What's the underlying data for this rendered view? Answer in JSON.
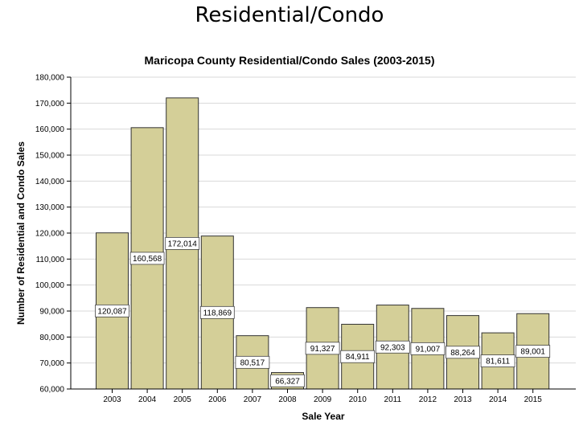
{
  "slide": {
    "title": "Residential/Condo"
  },
  "chart_data": {
    "type": "bar",
    "title": "Maricopa County Residential/Condo Sales (2003-2015)",
    "xlabel": "Sale Year",
    "ylabel": "Number of Residential and Condo Sales",
    "categories": [
      "2003",
      "2004",
      "2005",
      "2006",
      "2007",
      "2008",
      "2009",
      "2010",
      "2011",
      "2012",
      "2013",
      "2014",
      "2015"
    ],
    "values": [
      120087,
      160568,
      172014,
      118869,
      80517,
      66327,
      91327,
      84911,
      92303,
      91007,
      88264,
      81611,
      89001
    ],
    "data_labels": [
      "120,087",
      "160,568",
      "172,014",
      "118,869",
      "80,517",
      "66,327",
      "91,327",
      "84,911",
      "92,303",
      "91,007",
      "88,264",
      "81,611",
      "89,001"
    ],
    "ylim": [
      60000,
      180000
    ],
    "ytick_values": [
      60000,
      70000,
      80000,
      90000,
      100000,
      110000,
      120000,
      130000,
      140000,
      150000,
      160000,
      170000,
      180000
    ],
    "ytick_labels": [
      "60,000",
      "70,000",
      "80,000",
      "90,000",
      "100,000",
      "110,000",
      "120,000",
      "130,000",
      "140,000",
      "150,000",
      "160,000",
      "170,000",
      "180,000"
    ],
    "grid": true,
    "bar_color": "#d4cf98",
    "edge_color": "#333333"
  }
}
